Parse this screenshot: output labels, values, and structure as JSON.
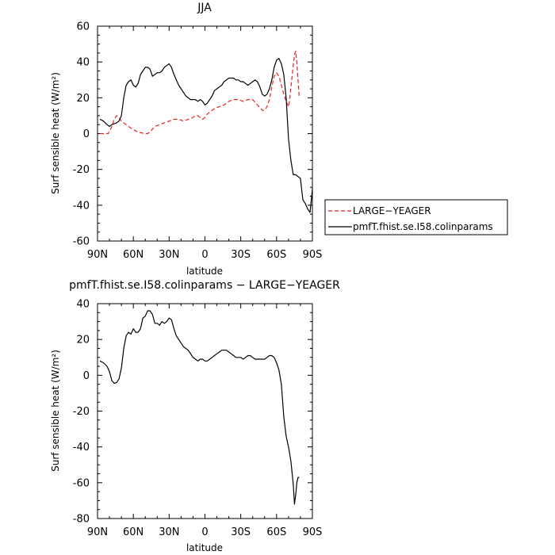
{
  "chart_data": [
    {
      "type": "line",
      "title": "JJA",
      "xlabel": "latitude",
      "ylabel": "Surf sensible heat (W/m²)",
      "xlim": [
        90,
        -90
      ],
      "ylim": [
        -60,
        60
      ],
      "yticks": [
        -60,
        -40,
        -20,
        0,
        20,
        40,
        60
      ],
      "xticks": [
        90,
        60,
        30,
        0,
        -30,
        -60,
        -90
      ],
      "xtick_labels": [
        "90N",
        "60N",
        "30N",
        "0",
        "30S",
        "60S",
        "90S"
      ],
      "grid": false,
      "legend": "right, outside plot",
      "series": [
        {
          "name": "LARGE−YEAGER",
          "color": "#e8231f",
          "dash": "dashed",
          "x": [
            88,
            84,
            81,
            78,
            76,
            74,
            72,
            70,
            66,
            62,
            58,
            54,
            50,
            48,
            46,
            42,
            38,
            34,
            30,
            26,
            22,
            18,
            14,
            10,
            8,
            6,
            4,
            2,
            0,
            -2,
            -4,
            -8,
            -12,
            -16,
            -20,
            -24,
            -28,
            -32,
            -36,
            -40,
            -44,
            -48,
            -50,
            -52,
            -54,
            -56,
            -58,
            -60,
            -62,
            -64,
            -66,
            -68,
            -70,
            -71,
            -72,
            -73,
            -74,
            -75,
            -76,
            -77,
            -78,
            -79
          ],
          "y": [
            0,
            0,
            0,
            4,
            8,
            10,
            9,
            7,
            5,
            3,
            1.5,
            0.5,
            0,
            0,
            1,
            4,
            5,
            6,
            7,
            8,
            8,
            7,
            8,
            9,
            10,
            10,
            9,
            8,
            9,
            11,
            12,
            14,
            15,
            16,
            18,
            19,
            19,
            18,
            19,
            19,
            16,
            13,
            13,
            15,
            19,
            26,
            32,
            34,
            32,
            27,
            22,
            18,
            15,
            19,
            26,
            32,
            38,
            44,
            46,
            40,
            30,
            20
          ]
        },
        {
          "name": "pmfT.fhist.se.I58.colinparams",
          "color": "#000000",
          "dash": "solid",
          "x": [
            88,
            85,
            82,
            80,
            78,
            76,
            74,
            72,
            70,
            68,
            66,
            64,
            62,
            60,
            58,
            56,
            54,
            52,
            50,
            48,
            46,
            44,
            42,
            40,
            38,
            36,
            34,
            32,
            30,
            28,
            26,
            24,
            22,
            20,
            18,
            16,
            14,
            12,
            10,
            8,
            6,
            4,
            2,
            0,
            -2,
            -4,
            -6,
            -8,
            -10,
            -12,
            -14,
            -16,
            -18,
            -20,
            -22,
            -24,
            -26,
            -28,
            -30,
            -32,
            -34,
            -36,
            -38,
            -40,
            -42,
            -44,
            -46,
            -48,
            -50,
            -52,
            -54,
            -56,
            -58,
            -60,
            -62,
            -64,
            -66,
            -68,
            -70,
            -72,
            -74,
            -76,
            -78,
            -80,
            -82,
            -84,
            -86,
            -88,
            -90
          ],
          "y": [
            8,
            7,
            5,
            4,
            5,
            5.5,
            6,
            7,
            10,
            20,
            27,
            29,
            30,
            27,
            26,
            28,
            33,
            35,
            37,
            37,
            36,
            32,
            33,
            34,
            34,
            35,
            37,
            38,
            39,
            37,
            33,
            30,
            27,
            25,
            23,
            21,
            20,
            19,
            19,
            19,
            18,
            19,
            18,
            16,
            17,
            19,
            21,
            24,
            25,
            26,
            27,
            29,
            30,
            31,
            31,
            31,
            30,
            30,
            29,
            29,
            28,
            27,
            28,
            29,
            30,
            29,
            26,
            22,
            21,
            22,
            25,
            30,
            37,
            41,
            42,
            39,
            33,
            20,
            -3,
            -15,
            -23,
            -23,
            -24,
            -25,
            -37,
            -39,
            -42,
            -44,
            -31
          ]
        }
      ]
    },
    {
      "type": "line",
      "title": "pmfT.fhist.se.I58.colinparams − LARGE−YEAGER",
      "xlabel": "latitude",
      "ylabel": "Surf sensible heat (W/m²)",
      "xlim": [
        90,
        -90
      ],
      "ylim": [
        -80,
        40
      ],
      "yticks": [
        -80,
        -60,
        -40,
        -20,
        0,
        20,
        40
      ],
      "xticks": [
        90,
        60,
        30,
        0,
        -30,
        -60,
        -90
      ],
      "xtick_labels": [
        "90N",
        "60N",
        "30N",
        "0",
        "30S",
        "60S",
        "90S"
      ],
      "grid": false,
      "series": [
        {
          "color": "#000000",
          "dash": "solid",
          "x": [
            88,
            85,
            82,
            80,
            78,
            76,
            74,
            72,
            70,
            68,
            66,
            64,
            62,
            60,
            58,
            56,
            54,
            52,
            50,
            48,
            46,
            44,
            42,
            40,
            38,
            36,
            34,
            32,
            30,
            28,
            26,
            24,
            22,
            20,
            18,
            16,
            14,
            12,
            10,
            8,
            6,
            4,
            2,
            0,
            -2,
            -4,
            -6,
            -8,
            -10,
            -12,
            -14,
            -16,
            -18,
            -20,
            -22,
            -24,
            -26,
            -28,
            -30,
            -32,
            -34,
            -36,
            -38,
            -40,
            -42,
            -44,
            -46,
            -48,
            -50,
            -52,
            -54,
            -56,
            -58,
            -60,
            -62,
            -64,
            -66,
            -68,
            -70,
            -72,
            -74,
            -75,
            -76,
            -77,
            -78,
            -79
          ],
          "y": [
            8,
            7,
            5,
            2,
            -3,
            -4.5,
            -4,
            -2,
            4,
            15,
            22,
            24,
            23,
            26,
            24,
            24,
            26,
            32,
            33,
            36,
            36,
            34,
            29,
            29,
            28,
            30,
            29,
            30,
            32,
            31,
            26,
            22,
            20,
            18,
            16,
            15,
            14,
            12,
            10,
            9,
            8,
            9,
            9,
            8,
            8,
            9,
            10,
            11,
            12,
            13,
            14,
            14,
            14,
            13,
            12,
            11,
            10,
            10,
            10,
            9,
            10,
            11,
            11,
            10,
            9,
            9,
            9,
            9,
            9,
            10,
            11,
            11,
            10,
            7,
            3,
            -5,
            -23,
            -34,
            -40,
            -48,
            -61,
            -72,
            -67,
            -60,
            -57,
            -57
          ]
        }
      ]
    }
  ]
}
